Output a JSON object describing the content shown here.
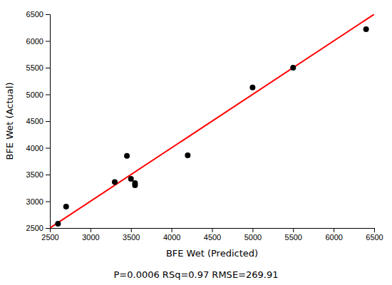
{
  "chart_data": {
    "type": "scatter",
    "xlabel": "BFE Wet (Predicted)",
    "ylabel": "BFE Wet (Actual)",
    "annotation": "P=0.0006 RSq=0.97 RMSE=269.91",
    "series": [
      {
        "type": "line",
        "color": "#ff0000",
        "x": [
          2500,
          6500
        ],
        "values": [
          2500,
          6500
        ]
      },
      {
        "type": "scatter",
        "color": "#000000",
        "x": [
          2600,
          2700,
          3300,
          3450,
          3500,
          3550,
          3550,
          4200,
          5000,
          5500,
          6400
        ],
        "values": [
          2580,
          2900,
          3360,
          3850,
          3420,
          3340,
          3300,
          3860,
          5130,
          5500,
          6220
        ]
      }
    ],
    "xlim": [
      2500,
      6500
    ],
    "ylim": [
      2500,
      6500
    ],
    "xticks": [
      2500,
      3000,
      3500,
      4000,
      4500,
      5000,
      5500,
      6000,
      6500
    ],
    "yticks": [
      2500,
      3000,
      3500,
      4000,
      4500,
      5000,
      5500,
      6000,
      6500
    ]
  }
}
